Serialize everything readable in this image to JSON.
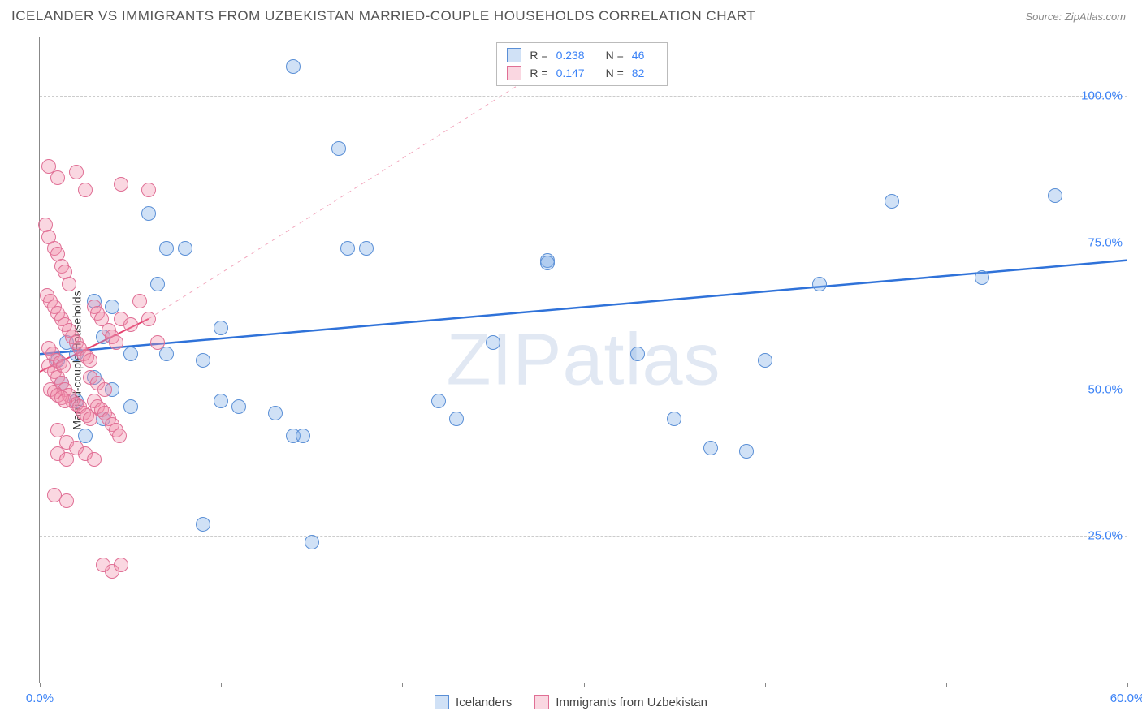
{
  "header": {
    "title": "ICELANDER VS IMMIGRANTS FROM UZBEKISTAN MARRIED-COUPLE HOUSEHOLDS CORRELATION CHART",
    "source": "Source: ZipAtlas.com"
  },
  "chart": {
    "type": "scatter",
    "y_axis_title": "Married-couple Households",
    "x_range": [
      0,
      60
    ],
    "y_range": [
      0,
      110
    ],
    "x_ticks": [
      0,
      10,
      20,
      30,
      40,
      50,
      60
    ],
    "x_tick_labels": {
      "0": "0.0%",
      "60": "60.0%"
    },
    "y_grid": [
      25,
      50,
      75,
      100
    ],
    "y_tick_labels": {
      "25": "25.0%",
      "50": "50.0%",
      "75": "75.0%",
      "100": "100.0%"
    },
    "gridline_color": "#dddddd",
    "axis_color": "#888888",
    "tick_label_color": "#3b82f6",
    "background_color": "#ffffff",
    "point_radius": 9,
    "watermark": "ZIPatlas",
    "series": [
      {
        "name": "Icelanders",
        "fill": "rgba(120,170,230,0.35)",
        "stroke": "#5a8fd6",
        "r_value": "0.238",
        "n_value": "46",
        "trend": {
          "x1": 0,
          "y1": 56,
          "x2": 60,
          "y2": 72,
          "color": "#2f72d9",
          "width": 2.5,
          "dash": "none"
        },
        "points": [
          [
            14,
            105
          ],
          [
            16.5,
            91
          ],
          [
            6,
            80
          ],
          [
            7,
            74
          ],
          [
            8,
            74
          ],
          [
            17,
            74
          ],
          [
            18,
            74
          ],
          [
            28,
            72
          ],
          [
            6.5,
            68
          ],
          [
            3,
            65
          ],
          [
            4,
            64
          ],
          [
            3.5,
            59
          ],
          [
            2,
            56
          ],
          [
            5,
            56
          ],
          [
            7,
            56
          ],
          [
            9,
            55
          ],
          [
            10,
            60.5
          ],
          [
            10,
            48
          ],
          [
            11,
            47
          ],
          [
            13,
            46
          ],
          [
            14,
            42
          ],
          [
            14.5,
            42
          ],
          [
            22,
            48
          ],
          [
            23,
            45
          ],
          [
            25,
            58
          ],
          [
            28,
            71.5
          ],
          [
            33,
            56
          ],
          [
            35,
            45
          ],
          [
            37,
            40
          ],
          [
            39,
            39.5
          ],
          [
            40,
            55
          ],
          [
            43,
            68
          ],
          [
            47,
            82
          ],
          [
            52,
            69
          ],
          [
            56,
            83
          ],
          [
            15,
            24
          ],
          [
            9,
            27
          ],
          [
            3,
            52
          ],
          [
            4,
            50
          ],
          [
            5,
            47
          ],
          [
            2,
            48
          ],
          [
            3.5,
            45
          ],
          [
            2.5,
            42
          ],
          [
            1.5,
            58
          ],
          [
            1,
            55
          ],
          [
            1.2,
            51
          ]
        ]
      },
      {
        "name": "Immigrants from Uzbekistan",
        "fill": "rgba(240,140,170,0.35)",
        "stroke": "#e06f95",
        "r_value": "0.147",
        "n_value": "82",
        "trend": {
          "x1": 0,
          "y1": 53,
          "x2": 6,
          "y2": 62,
          "color": "#e5426f",
          "width": 2,
          "dash": "none"
        },
        "trend_extend": {
          "x1": 6,
          "y1": 62,
          "x2": 28,
          "y2": 105,
          "color": "#f2a7bd",
          "width": 1,
          "dash": "5,5"
        },
        "points": [
          [
            0.5,
            88
          ],
          [
            1,
            86
          ],
          [
            2,
            87
          ],
          [
            2.5,
            84
          ],
          [
            4.5,
            85
          ],
          [
            6,
            84
          ],
          [
            0.3,
            78
          ],
          [
            0.5,
            76
          ],
          [
            0.8,
            74
          ],
          [
            1,
            73
          ],
          [
            1.2,
            71
          ],
          [
            1.4,
            70
          ],
          [
            1.6,
            68
          ],
          [
            0.4,
            66
          ],
          [
            0.6,
            65
          ],
          [
            0.8,
            64
          ],
          [
            1,
            63
          ],
          [
            1.2,
            62
          ],
          [
            1.4,
            61
          ],
          [
            1.6,
            60
          ],
          [
            1.8,
            59
          ],
          [
            2,
            58
          ],
          [
            2.2,
            57
          ],
          [
            2.4,
            56
          ],
          [
            2.6,
            55.5
          ],
          [
            2.8,
            55
          ],
          [
            3,
            64
          ],
          [
            3.2,
            63
          ],
          [
            3.4,
            62
          ],
          [
            3.8,
            60
          ],
          [
            4,
            59
          ],
          [
            4.2,
            58
          ],
          [
            4.5,
            62
          ],
          [
            5,
            61
          ],
          [
            5.5,
            65
          ],
          [
            6,
            62
          ],
          [
            6.5,
            58
          ],
          [
            0.5,
            54
          ],
          [
            0.8,
            53
          ],
          [
            1,
            52
          ],
          [
            1.2,
            51
          ],
          [
            1.4,
            50
          ],
          [
            1.6,
            49
          ],
          [
            1.8,
            48
          ],
          [
            2,
            47.5
          ],
          [
            2.2,
            47
          ],
          [
            2.4,
            46
          ],
          [
            2.6,
            45.5
          ],
          [
            2.8,
            45
          ],
          [
            3,
            48
          ],
          [
            3.2,
            47
          ],
          [
            3.4,
            46.5
          ],
          [
            3.6,
            46
          ],
          [
            3.8,
            45
          ],
          [
            4,
            44
          ],
          [
            4.2,
            43
          ],
          [
            4.4,
            42
          ],
          [
            1,
            43
          ],
          [
            1.5,
            41
          ],
          [
            2,
            40
          ],
          [
            1,
            39
          ],
          [
            1.5,
            38
          ],
          [
            2.5,
            39
          ],
          [
            3,
            38
          ],
          [
            0.8,
            32
          ],
          [
            1.5,
            31
          ],
          [
            3.5,
            20
          ],
          [
            4,
            19
          ],
          [
            4.5,
            20
          ],
          [
            0.5,
            57
          ],
          [
            0.7,
            56
          ],
          [
            0.9,
            55
          ],
          [
            1.1,
            54.5
          ],
          [
            1.3,
            54
          ],
          [
            0.6,
            50
          ],
          [
            0.8,
            49.5
          ],
          [
            1.0,
            49
          ],
          [
            1.2,
            48.5
          ],
          [
            1.4,
            48
          ],
          [
            2.8,
            52
          ],
          [
            3.2,
            51
          ],
          [
            3.6,
            50
          ]
        ]
      }
    ],
    "legend_top": {
      "r_label": "R =",
      "n_label": "N ="
    },
    "legend_bottom": [
      {
        "label": "Icelanders",
        "series": 0
      },
      {
        "label": "Immigrants from Uzbekistan",
        "series": 1
      }
    ]
  }
}
